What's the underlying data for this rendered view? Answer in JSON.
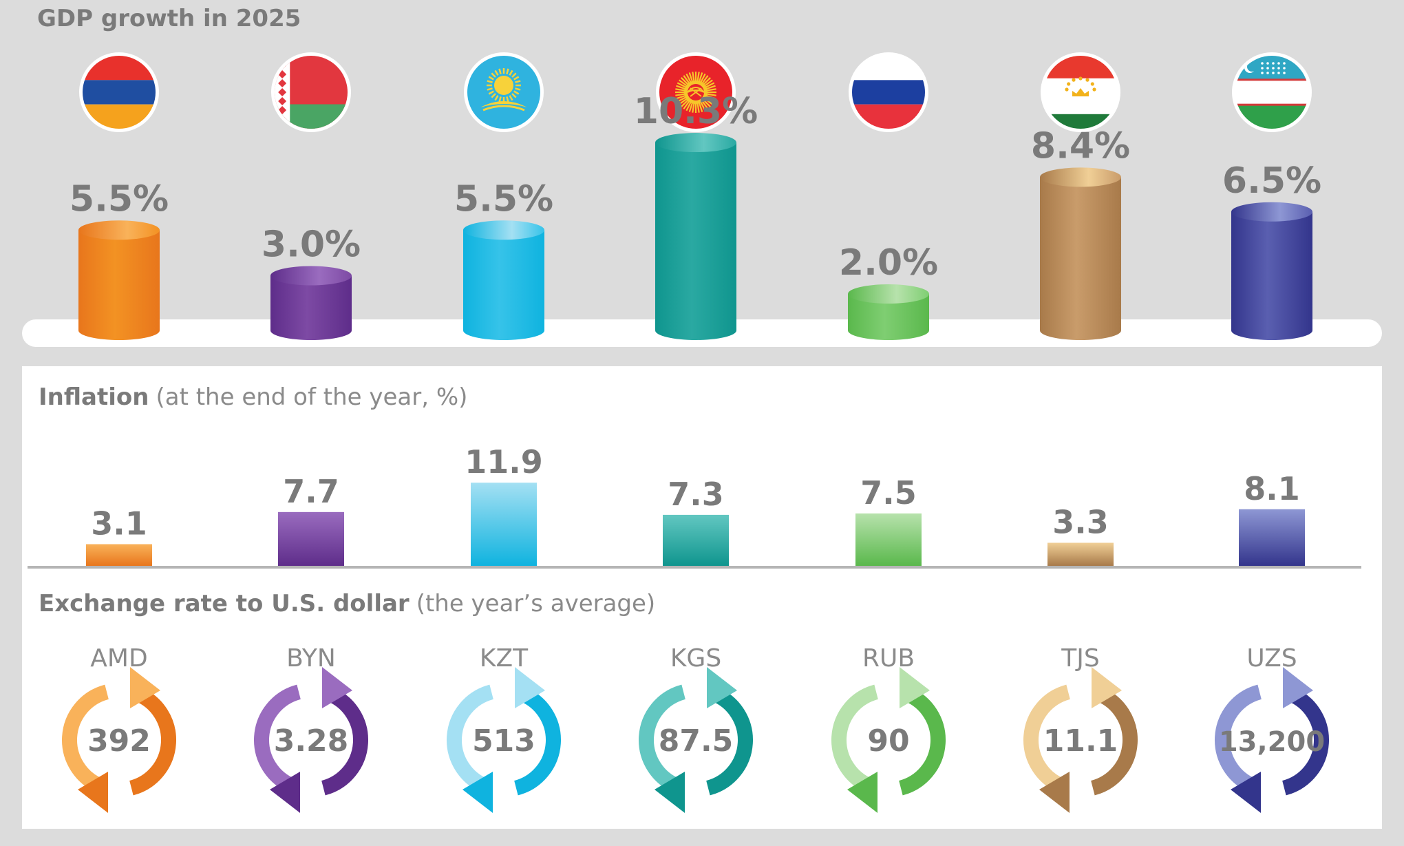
{
  "colors": {
    "AMD": {
      "main": "#f39223",
      "dark": "#e8761c",
      "light": "#f9b25a"
    },
    "BYN": {
      "main": "#7d4aa4",
      "dark": "#5e2d8a",
      "light": "#9a6cbf"
    },
    "KZT": {
      "main": "#36c3e9",
      "dark": "#0fb3df",
      "light": "#a4e0f3"
    },
    "KGS": {
      "main": "#2aa9a2",
      "dark": "#0f958e",
      "light": "#62c7c1"
    },
    "RUB": {
      "main": "#7fce72",
      "dark": "#5ab84c",
      "light": "#b7e2ac"
    },
    "TJS": {
      "main": "#c99c6b",
      "dark": "#a87a4a",
      "light": "#f0cf96"
    },
    "UZS": {
      "main": "#5a5fb0",
      "dark": "#33358c",
      "light": "#8e97d4"
    },
    "text": "#7a7a7a",
    "background": "#dcdcdc"
  },
  "gdp": {
    "title": "GDP growth in 2025",
    "flags": [
      "Armenia",
      "Belarus",
      "Kazakhstan",
      "Kyrgyzstan",
      "Russia",
      "Tajikistan",
      "Uzbekistan"
    ]
  },
  "inflation": {
    "title_bold": "Inflation",
    "title_light": "(at the end of the year, %)"
  },
  "exchange": {
    "title_bold": "Exchange rate to U.S. dollar",
    "title_light": "(the year’s average)"
  },
  "chart_data": [
    {
      "type": "bar",
      "title": "GDP growth in 2025",
      "categories": [
        "Armenia",
        "Belarus",
        "Kazakhstan",
        "Kyrgyzstan",
        "Russia",
        "Tajikistan",
        "Uzbekistan"
      ],
      "values": [
        5.5,
        3.0,
        5.5,
        10.3,
        2.0,
        8.4,
        6.5
      ],
      "labels": [
        "5.5%",
        "3.0%",
        "5.5%",
        "10.3%",
        "2.0%",
        "8.4%",
        "6.5%"
      ],
      "grid": false,
      "legend": "none"
    },
    {
      "type": "bar",
      "title": "Inflation (at the end of the year, %)",
      "categories": [
        "AMD",
        "BYN",
        "KZT",
        "KGS",
        "RUB",
        "TJS",
        "UZS"
      ],
      "values": [
        3.1,
        7.7,
        11.9,
        7.3,
        7.5,
        3.3,
        8.1
      ],
      "labels": [
        "3.1",
        "7.7",
        "11.9",
        "7.3",
        "7.5",
        "3.3",
        "8.1"
      ],
      "grid": false,
      "legend": "none"
    },
    {
      "type": "table",
      "title": "Exchange rate to U.S. dollar (the year’s average)",
      "categories": [
        "AMD",
        "BYN",
        "KZT",
        "KGS",
        "RUB",
        "TJS",
        "UZS"
      ],
      "values": [
        392,
        3.28,
        513,
        87.5,
        90,
        11.1,
        13200
      ],
      "labels": [
        "392",
        "3.28",
        "513",
        "87.5",
        "90",
        "11.1",
        "13,200"
      ]
    }
  ]
}
